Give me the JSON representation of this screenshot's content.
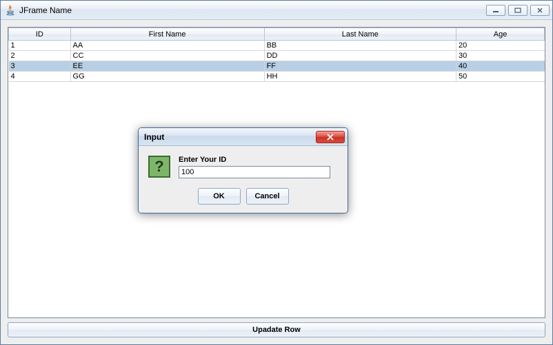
{
  "window": {
    "title": "JFrame Name",
    "buttons": {
      "minimize": "—",
      "maximize": "□",
      "close": "✕"
    }
  },
  "table": {
    "columns": [
      "ID",
      "First Name",
      "Last Name",
      "Age"
    ],
    "rows": [
      [
        "1",
        "AA",
        "BB",
        "20"
      ],
      [
        "2",
        "CC",
        "DD",
        "30"
      ],
      [
        "3",
        "EE",
        "FF",
        "40"
      ],
      [
        "4",
        "GG",
        "HH",
        "50"
      ]
    ],
    "selected_index": 2
  },
  "update_button_label": "Upadate Row",
  "dialog": {
    "title": "Input",
    "prompt": "Enter Your ID",
    "value": "100",
    "ok_label": "OK",
    "cancel_label": "Cancel"
  },
  "colors": {
    "window_border": "#5a7ba0",
    "content_bg": "#eeeeee",
    "selection_bg": "#b8cfe5",
    "header_border": "#b4c4d6",
    "close_btn_bg": "#c93224",
    "question_icon_bg": "#7db66a",
    "question_icon_border": "#3a6a2d"
  }
}
